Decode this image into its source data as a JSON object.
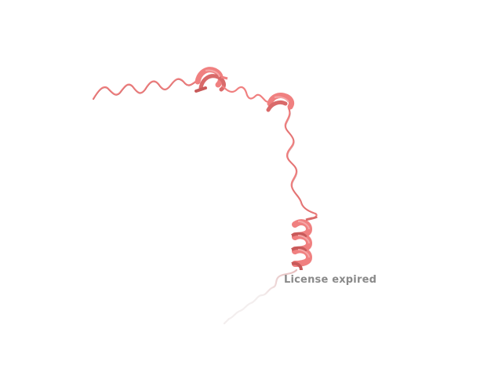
{
  "viewer": {
    "watermark_text": "License expired"
  },
  "structure": {
    "representation": "cartoon",
    "segments": [
      "coil",
      "helix",
      "coil",
      "helix",
      "coil",
      "helix",
      "coil"
    ]
  },
  "colors": {
    "background": "#ffffff",
    "ribbon": "#f08080",
    "ribbon_dark": "#c85a5a",
    "ribbon_light": "#f5a7a7",
    "tail_fade": "#e8d8d8",
    "watermark": "#8a8a8a"
  }
}
